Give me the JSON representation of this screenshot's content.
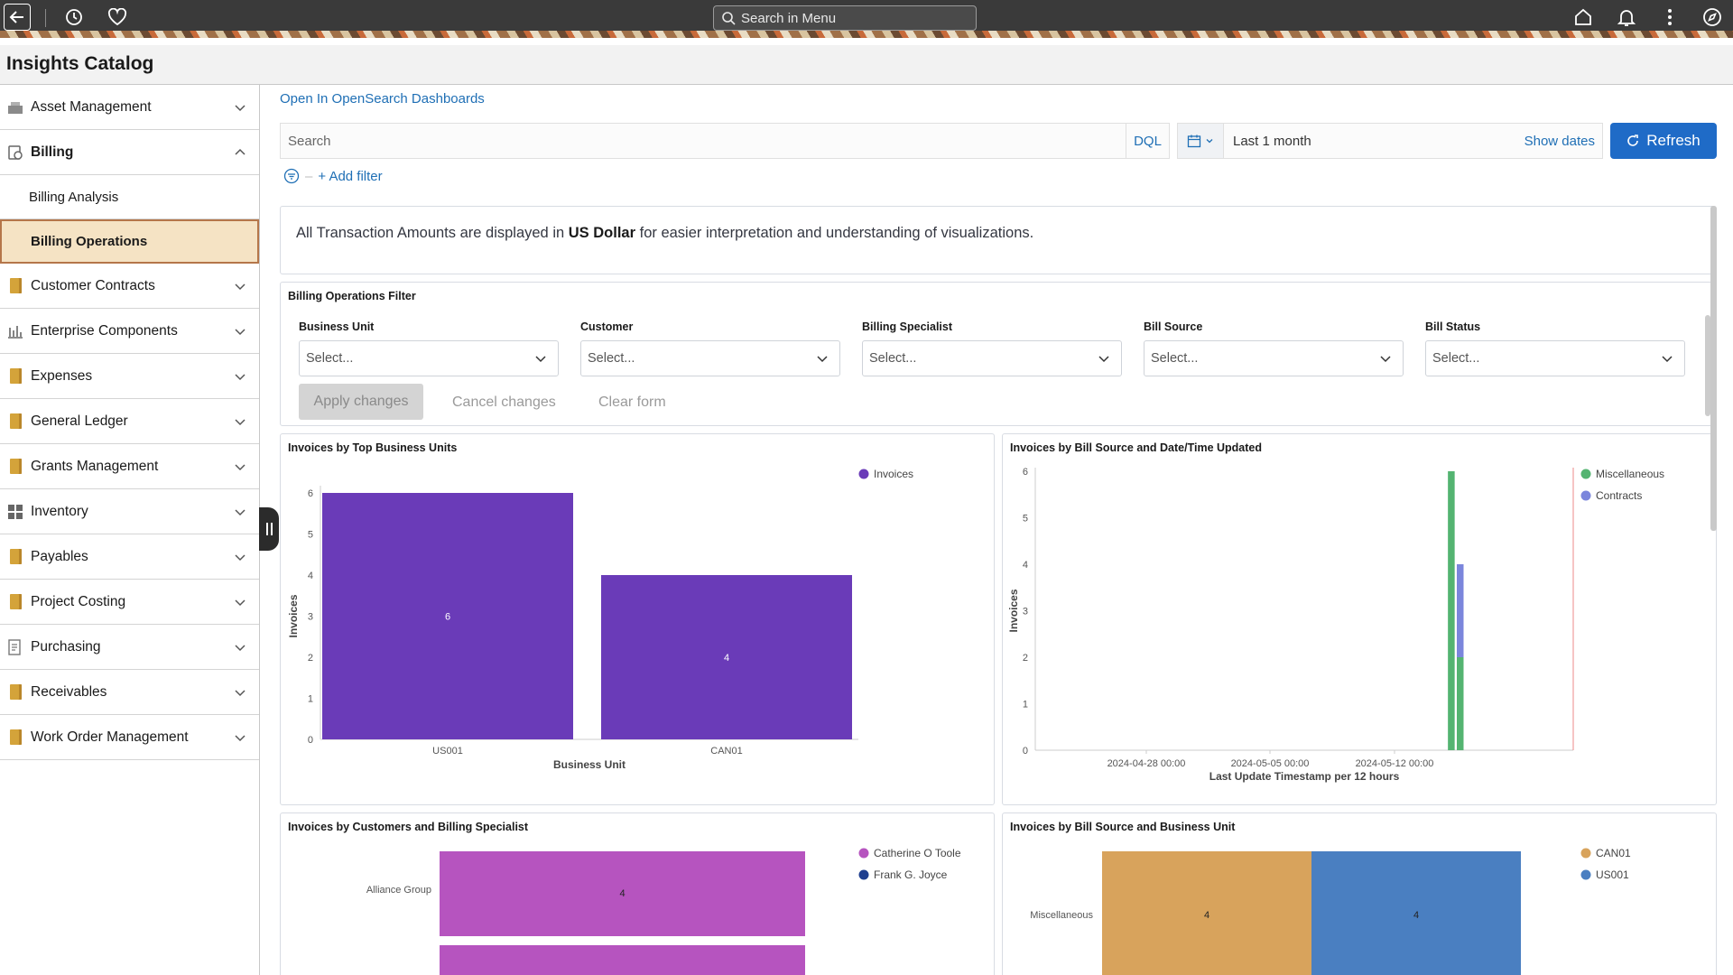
{
  "topbar": {
    "search_placeholder": "Search in Menu",
    "icons": [
      "back-arrow-icon",
      "history-icon",
      "favorites-icon",
      "home-icon",
      "bell-icon",
      "more-vertical-icon",
      "compass-icon"
    ]
  },
  "page": {
    "title": "Insights Catalog"
  },
  "sidebar": {
    "items": [
      {
        "label": "Asset Management",
        "icon": "building-icon"
      },
      {
        "label": "Billing",
        "icon": "billing-icon",
        "open": true,
        "children": [
          {
            "label": "Billing Analysis"
          },
          {
            "label": "Billing Operations",
            "active": true
          }
        ]
      },
      {
        "label": "Customer Contracts",
        "icon": "book-icon"
      },
      {
        "label": "Enterprise Components",
        "icon": "bar-chart-icon"
      },
      {
        "label": "Expenses",
        "icon": "book-icon"
      },
      {
        "label": "General Ledger",
        "icon": "book-icon"
      },
      {
        "label": "Grants Management",
        "icon": "book-icon"
      },
      {
        "label": "Inventory",
        "icon": "boxes-icon"
      },
      {
        "label": "Payables",
        "icon": "book-icon"
      },
      {
        "label": "Project Costing",
        "icon": "book-icon"
      },
      {
        "label": "Purchasing",
        "icon": "purchase-icon"
      },
      {
        "label": "Receivables",
        "icon": "book-icon"
      },
      {
        "label": "Work Order Management",
        "icon": "book-icon"
      }
    ]
  },
  "main": {
    "open_link": "Open In OpenSearch Dashboards",
    "query": {
      "search_placeholder": "Search",
      "dql": "DQL",
      "date_range": "Last 1 month",
      "show_dates": "Show dates",
      "refresh": "Refresh",
      "add_filter": "+ Add filter"
    },
    "notice": {
      "before": "All Transaction Amounts are displayed in ",
      "bold": "US Dollar",
      "after": " for easier interpretation and understanding of visualizations."
    },
    "filter_panel": {
      "title": "Billing Operations Filter",
      "fields": [
        {
          "label": "Business Unit",
          "value": "Select..."
        },
        {
          "label": "Customer",
          "value": "Select..."
        },
        {
          "label": "Billing Specialist",
          "value": "Select..."
        },
        {
          "label": "Bill Source",
          "value": "Select..."
        },
        {
          "label": "Bill Status",
          "value": "Select..."
        }
      ],
      "apply": "Apply changes",
      "cancel": "Cancel changes",
      "clear": "Clear form"
    }
  },
  "chart_data": [
    {
      "type": "bar",
      "title": "Invoices by Top Business Units",
      "categories": [
        "US001",
        "CAN01"
      ],
      "series": [
        {
          "name": "Invoices",
          "values": [
            6,
            4
          ],
          "color": "#6a3bb8"
        }
      ],
      "data_labels": [
        "6",
        "4"
      ],
      "xlabel": "Business Unit",
      "ylabel": "Invoices",
      "ylim": [
        0,
        6
      ],
      "yticks": [
        "0",
        "1",
        "2",
        "3",
        "4",
        "5",
        "6"
      ],
      "legend": "top-right"
    },
    {
      "type": "bar",
      "title": "Invoices by Bill Source and Date/Time Updated",
      "xlabel": "Last Update Timestamp per 12 hours",
      "ylabel": "Invoices",
      "ylim": [
        0,
        6
      ],
      "yticks": [
        "0",
        "1",
        "2",
        "3",
        "4",
        "5",
        "6"
      ],
      "xticks": [
        "2024-04-28 00:00",
        "2024-05-05 00:00",
        "2024-05-12 00:00"
      ],
      "series": [
        {
          "name": "Miscellaneous",
          "color": "#54b471",
          "points": [
            {
              "x": "2024-05-15 00:00",
              "y": 6
            },
            {
              "x": "2024-05-15 12:00",
              "y": 2
            }
          ]
        },
        {
          "name": "Contracts",
          "color": "#7b86dc",
          "points": [
            {
              "x": "2024-05-15 12:00",
              "y": 2
            }
          ]
        }
      ],
      "legend": "top-right"
    },
    {
      "type": "bar",
      "title": "Invoices by Customers and Billing Specialist",
      "orientation": "horizontal",
      "categories": [
        "Alliance Group"
      ],
      "series": [
        {
          "name": "Catherine O Toole",
          "color": "#b654bf",
          "values": [
            4
          ]
        },
        {
          "name": "Frank G. Joyce",
          "color": "#1f3f8f",
          "values": [
            null
          ]
        }
      ],
      "data_labels": [
        "4"
      ],
      "legend": "top-right"
    },
    {
      "type": "bar",
      "title": "Invoices by Bill Source and Business Unit",
      "orientation": "horizontal",
      "stacked": true,
      "categories": [
        "Miscellaneous"
      ],
      "series": [
        {
          "name": "CAN01",
          "color": "#d8a35c",
          "values": [
            4
          ]
        },
        {
          "name": "US001",
          "color": "#4a7fc1",
          "values": [
            4
          ]
        }
      ],
      "data_labels": [
        "4",
        "4"
      ],
      "legend": "top-right"
    }
  ]
}
